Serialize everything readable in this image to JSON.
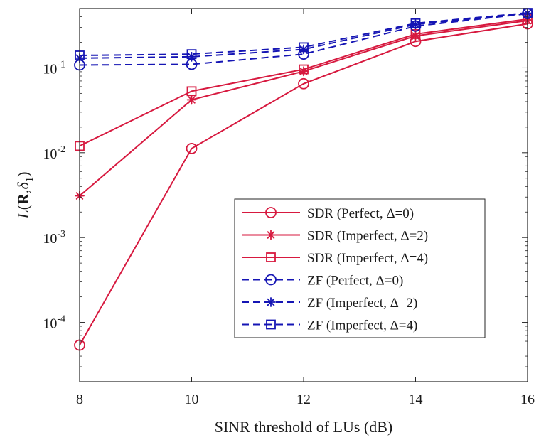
{
  "chart_data": {
    "type": "line",
    "title": "",
    "xlabel": "SINR threshold of LUs (dB)",
    "ylabel_parts": {
      "fn": "L",
      "open": "(",
      "bold": "R",
      "comma": ",",
      "delta": "δ",
      "sub": "1",
      "close": ")"
    },
    "x": [
      8,
      10,
      12,
      14,
      16
    ],
    "xlim": [
      8,
      16
    ],
    "ylim": [
      2e-05,
      0.5
    ],
    "yscale": "log",
    "x_ticks": [
      "8",
      "10",
      "12",
      "14",
      "16"
    ],
    "y_ticks": [
      {
        "value": 0.0001,
        "base": "10",
        "exp": "-4"
      },
      {
        "value": 0.001,
        "base": "10",
        "exp": "-3"
      },
      {
        "value": 0.01,
        "base": "10",
        "exp": "-2"
      },
      {
        "value": 0.1,
        "base": "10",
        "exp": "-1"
      }
    ],
    "legend_position": "bottom-right",
    "series": [
      {
        "name": "SDR (Perfect, Δ=0)",
        "color": "#d7193f",
        "dash": "solid",
        "marker": "circle",
        "values": [
          5.4e-05,
          0.0112,
          0.065,
          0.205,
          0.33
        ]
      },
      {
        "name": "SDR (Imperfect, Δ=2)",
        "color": "#d7193f",
        "dash": "solid",
        "marker": "star",
        "values": [
          0.0031,
          0.042,
          0.091,
          0.238,
          0.36
        ]
      },
      {
        "name": "SDR (Imperfect, Δ=4)",
        "color": "#d7193f",
        "dash": "solid",
        "marker": "square",
        "values": [
          0.012,
          0.053,
          0.096,
          0.25,
          0.375
        ]
      },
      {
        "name": "ZF (Perfect, Δ=0)",
        "color": "#1515b4",
        "dash": "dashed",
        "marker": "circle",
        "values": [
          0.108,
          0.11,
          0.145,
          0.31,
          0.435
        ]
      },
      {
        "name": "ZF (Imperfect, Δ=2)",
        "color": "#1515b4",
        "dash": "dashed",
        "marker": "star",
        "values": [
          0.13,
          0.135,
          0.165,
          0.325,
          0.44
        ]
      },
      {
        "name": "ZF (Imperfect, Δ=4)",
        "color": "#1515b4",
        "dash": "dashed",
        "marker": "square",
        "values": [
          0.14,
          0.145,
          0.175,
          0.335,
          0.445
        ]
      }
    ]
  }
}
